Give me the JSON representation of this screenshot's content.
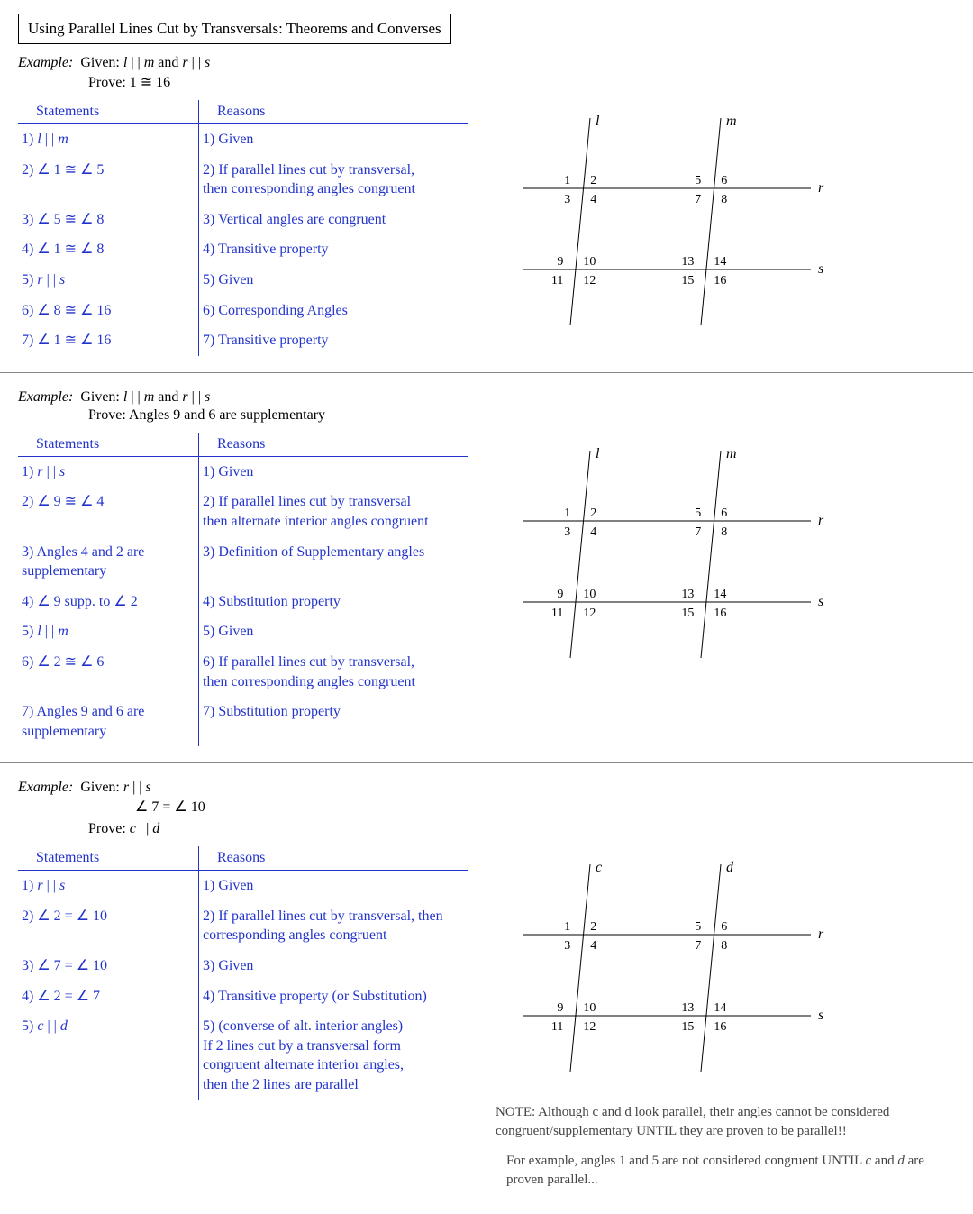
{
  "title": "Using Parallel Lines Cut by Transversals: Theorems and Converses",
  "blue": "#2233cc",
  "black": "#000000",
  "diagram": {
    "line_l_label": "l",
    "line_m_label": "m",
    "line_r_label": "r",
    "line_s_label": "s",
    "line_c_label": "c",
    "line_d_label": "d",
    "angles_top_left": [
      "1",
      "2",
      "3",
      "4"
    ],
    "angles_top_right": [
      "5",
      "6",
      "7",
      "8"
    ],
    "angles_bot_left": [
      "9",
      "10",
      "11",
      "12"
    ],
    "angles_bot_right": [
      "13",
      "14",
      "15",
      "16"
    ]
  },
  "ex1": {
    "given_label": "Example:",
    "given_text": "Given:   l | | m   and  r | | s",
    "prove_text": "Prove:   1 ≅ 16",
    "headers": [
      "Statements",
      "Reasons"
    ],
    "rows": [
      {
        "s": "1)   l | | m",
        "r": "1)  Given"
      },
      {
        "s": "2)  ∠ 1 ≅  ∠ 5",
        "r": "2)  If parallel lines cut by transversal,\n     then corresponding angles congruent"
      },
      {
        "s": "3)  ∠ 5 ≅  ∠ 8",
        "r": "3)  Vertical angles are congruent"
      },
      {
        "s": "4)  ∠ 1 ≅  ∠ 8",
        "r": "4)  Transitive property"
      },
      {
        "s": "5)   r | | s",
        "r": "5)  Given"
      },
      {
        "s": "6)  ∠ 8 ≅  ∠ 16",
        "r": "6)  Corresponding Angles"
      },
      {
        "s": "7)  ∠ 1 ≅  ∠ 16",
        "r": "7)  Transitive property"
      }
    ]
  },
  "ex2": {
    "given_label": "Example:",
    "given_text": "Given:   l | | m   and  r | | s",
    "prove_text": "Prove:  Angles 9 and 6 are supplementary",
    "headers": [
      "Statements",
      "Reasons"
    ],
    "rows": [
      {
        "s": "1)  r | | s",
        "r": "1)  Given"
      },
      {
        "s": "2)  ∠ 9 ≅  ∠ 4",
        "r": "2)  If parallel lines cut by transversal\n     then alternate interior angles congruent"
      },
      {
        "s": "3)  Angles 4 and 2 are\n     supplementary",
        "r": "3)   Definition of Supplementary angles"
      },
      {
        "s": "4)  ∠ 9 supp. to  ∠ 2",
        "r": "4)   Substitution property"
      },
      {
        "s": "5)    l | | m",
        "r": "5)   Given"
      },
      {
        "s": "6)  ∠ 2 ≅  ∠ 6",
        "r": "6)  If parallel lines cut by transversal,\n     then corresponding  angles congruent"
      },
      {
        "s": "7)  Angles 9 and 6 are\n     supplementary",
        "r": "7)   Substitution property"
      }
    ]
  },
  "ex3": {
    "given_label": "Example:",
    "given_text": "Given:   r | | s",
    "given_text2": "∠ 7 = ∠ 10",
    "prove_text": "Prove:  c | | d",
    "headers": [
      "Statements",
      "Reasons"
    ],
    "rows": [
      {
        "s": "1)   r | | s",
        "r": "1)  Given"
      },
      {
        "s": "2)   ∠ 2 = ∠ 10",
        "r": "2)  If parallel lines cut by transversal, then\n     corresponding angles congruent"
      },
      {
        "s": "3)   ∠ 7 = ∠ 10",
        "r": "3)  Given"
      },
      {
        "s": "4)   ∠ 2 = ∠ 7",
        "r": "4)   Transitive property (or Substitution)"
      },
      {
        "s": "5)    c | | d",
        "r": "5)   (converse of alt. interior angles)\n      If 2 lines cut by a transversal form\n     congruent alternate interior angles,\n     then the 2 lines are parallel"
      }
    ],
    "note1": "NOTE:  Although c and d look parallel, their angles cannot be considered congruent/supplementary UNTIL they are proven to be parallel!!",
    "note2": "For example, angles 1 and 5 are not considered congruent UNTIL c and d are proven parallel..."
  }
}
